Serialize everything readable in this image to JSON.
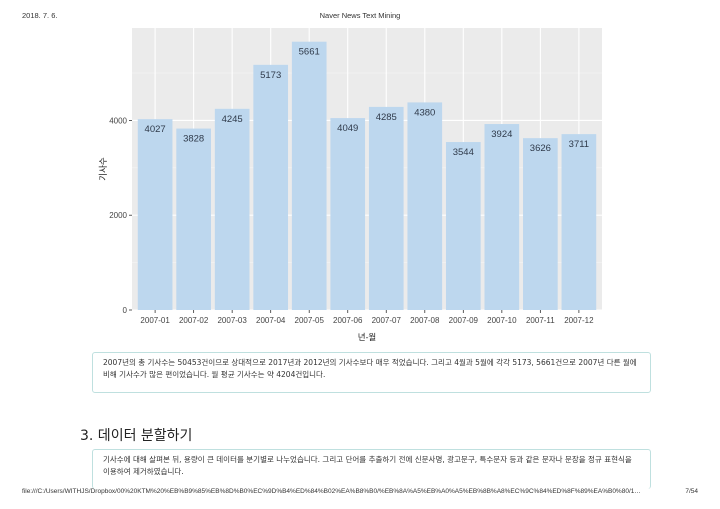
{
  "header": {
    "date": "2018. 7. 6.",
    "title": "Naver News Text Mining"
  },
  "chart_data": {
    "type": "bar",
    "categories": [
      "2007-01",
      "2007-02",
      "2007-03",
      "2007-04",
      "2007-05",
      "2007-06",
      "2007-07",
      "2007-08",
      "2007-09",
      "2007-10",
      "2007-11",
      "2007-12"
    ],
    "values": [
      4027,
      3828,
      4245,
      5173,
      5661,
      4049,
      4285,
      4380,
      3544,
      3924,
      3626,
      3711
    ],
    "xlabel": "년-월",
    "ylabel": "기사수",
    "ylim": [
      0,
      5950
    ],
    "yticks": [
      0,
      2000,
      4000
    ],
    "bar_color": "#bdd7ee",
    "panel_color": "#ebebeb",
    "grid": true
  },
  "summary_text": "2007년의 총 기사수는 50453건이므로 상대적으로 2017년과 2012년의 기사수보다 매우 적었습니다. 그리고 4월과 5월에 각각 5173, 5661건으로 2007년 다른 월에 비해 기사수가 많은 편이었습니다. 월 평균 기사수는 약 4204건입니다.",
  "section": {
    "title": "3. 데이터 분할하기",
    "text": "기사수에 대해 살펴본 뒤, 용량이 큰 데이터를 분기별로 나누었습니다. 그리고 단어를 추출하기 전에 신문사명, 광고문구, 특수문자 등과 같은 문자나 문장을 정규 표현식을 이용하여 제거하였습니다."
  },
  "footer": {
    "path": "file:///C:/Users/WITHJS/Dropbox/00%20KTM%20%EB%B9%85%EB%8D%B0%EC%9D%B4%ED%84%B02%EA%B8%B0/%EB%8A%A5%EB%A0%A5%EB%8B%A8%EC%9C%84%ED%8F%89%EA%B0%80/1…",
    "page": "7/54"
  }
}
